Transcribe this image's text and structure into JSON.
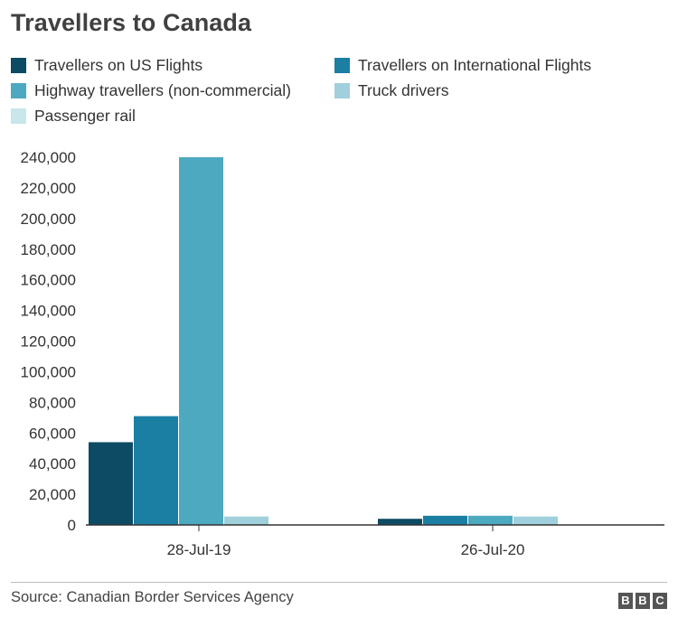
{
  "chart_data": {
    "type": "bar",
    "title": "Travellers to Canada",
    "categories": [
      "28-Jul-19",
      "26-Jul-20"
    ],
    "series": [
      {
        "name": "Travellers on US Flights",
        "color": "#0d4a63",
        "values": [
          54000,
          4000
        ]
      },
      {
        "name": "Travellers on International Flights",
        "color": "#1a7fa3",
        "values": [
          71000,
          6000
        ]
      },
      {
        "name": "Highway travellers (non-commercial)",
        "color": "#4da9c0",
        "values": [
          240000,
          6000
        ]
      },
      {
        "name": "Truck drivers",
        "color": "#9fd0dc",
        "values": [
          5500,
          5500
        ]
      },
      {
        "name": "Passenger rail",
        "color": "#c9e6ea",
        "values": [
          0,
          0
        ]
      }
    ],
    "y_ticks": [
      "0",
      "20,000",
      "40,000",
      "60,000",
      "80,000",
      "100,000",
      "120,000",
      "140,000",
      "160,000",
      "180,000",
      "200,000",
      "220,000",
      "240,000"
    ],
    "ylim": [
      0,
      240000
    ],
    "xlabel": "",
    "ylabel": "",
    "grid": false,
    "legend_position": "top"
  },
  "footer": {
    "source": "Source: Canadian Border Services Agency",
    "logo_letters": [
      "B",
      "B",
      "C"
    ]
  }
}
